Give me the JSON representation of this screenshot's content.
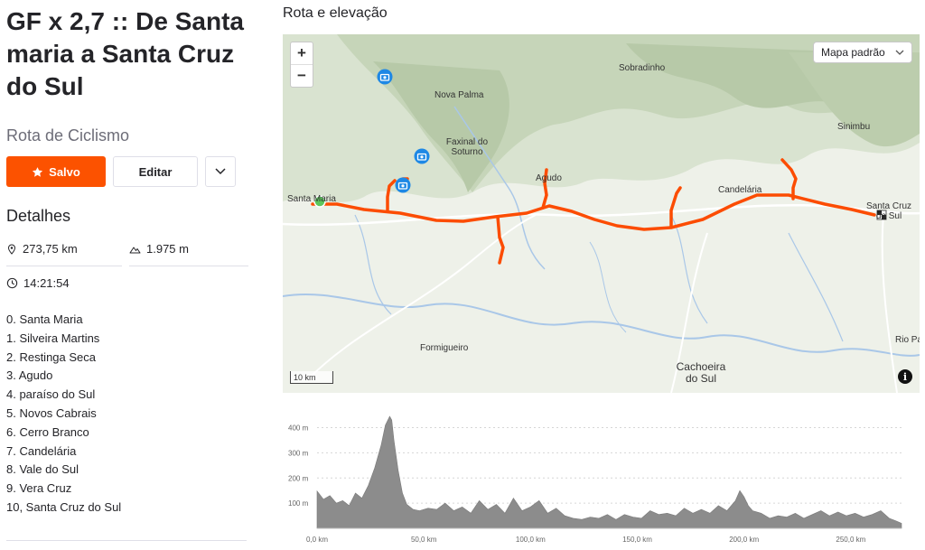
{
  "route": {
    "title": "GF x 2,7 :: De Santa maria a Santa Cruz do Sul",
    "subtitle": "Rota de Ciclismo",
    "buttons": {
      "saved": "Salvo",
      "edit": "Editar"
    },
    "details_heading": "Detalhes",
    "stats": {
      "distance": "273,75 km",
      "elevation": "1.975 m",
      "time": "14:21:54"
    },
    "stages": [
      "0. Santa Maria",
      "1. Silveira Martins",
      "2. Restinga Seca",
      "3. Agudo",
      "4. paraíso do Sul",
      "5. Novos Cabrais",
      "6. Cerro Branco",
      "7. Candelária",
      "8. Vale do Sul",
      "9. Vera Cruz",
      "10, Santa Cruz do Sul"
    ]
  },
  "map": {
    "heading": "Rota e elevação",
    "style_select": "Mapa padrão",
    "zoom_in": "+",
    "zoom_out": "−",
    "scale": "10 km",
    "info": "i",
    "labels": {
      "sobradinho": "Sobradinho",
      "nova_palma": "Nova Palma",
      "faxinal": "Faxinal do Soturno",
      "sinimbu": "Sinimbu",
      "agudo": "Agudo",
      "candelaria": "Candelária",
      "santa_maria": "Santa Maria",
      "santa_cruz": "Santa Cruz do Sul",
      "formigueiro": "Formigueiro",
      "cachoeira": "Cachoeira do Sul",
      "rio_pardo": "Rio Pa"
    },
    "colors": {
      "route": "#fc4c02",
      "start": "#5cc65c",
      "photo": "#1e88e5"
    }
  },
  "chart_data": {
    "type": "area",
    "xlabel": "",
    "ylabel": "",
    "xlim": [
      0,
      273.75
    ],
    "ylim": [
      0,
      470
    ],
    "x_ticks": [
      "0,0 km",
      "50,0 km",
      "100,0 km",
      "150,0 km",
      "200,0 km",
      "250,0 km"
    ],
    "x_tick_values": [
      0,
      50,
      100,
      150,
      200,
      250
    ],
    "y_ticks": [
      "100 m",
      "200 m",
      "300 m",
      "400 m"
    ],
    "y_tick_values": [
      100,
      200,
      300,
      400
    ],
    "grid": true,
    "color": "#8c8c8c",
    "x": [
      0,
      3,
      6,
      9,
      12,
      15,
      18,
      21,
      24,
      27,
      30,
      32,
      34,
      35,
      36,
      38,
      40,
      42,
      45,
      48,
      52,
      56,
      60,
      64,
      68,
      72,
      76,
      80,
      84,
      88,
      92,
      96,
      100,
      104,
      108,
      112,
      116,
      120,
      124,
      128,
      132,
      136,
      140,
      144,
      148,
      152,
      156,
      160,
      164,
      168,
      172,
      176,
      180,
      184,
      188,
      192,
      196,
      198,
      200,
      202,
      204,
      208,
      212,
      216,
      220,
      224,
      228,
      232,
      236,
      240,
      244,
      248,
      252,
      256,
      260,
      264,
      268,
      271,
      273.75
    ],
    "y": [
      148,
      115,
      130,
      100,
      110,
      90,
      140,
      120,
      170,
      240,
      330,
      410,
      445,
      430,
      350,
      230,
      140,
      95,
      75,
      70,
      80,
      75,
      100,
      70,
      85,
      60,
      110,
      75,
      95,
      60,
      120,
      70,
      85,
      110,
      60,
      80,
      50,
      40,
      35,
      45,
      40,
      55,
      35,
      55,
      45,
      40,
      70,
      55,
      60,
      50,
      80,
      60,
      75,
      60,
      90,
      70,
      110,
      150,
      125,
      90,
      70,
      60,
      40,
      50,
      45,
      60,
      40,
      55,
      70,
      50,
      65,
      50,
      60,
      45,
      55,
      70,
      40,
      30,
      20
    ]
  }
}
